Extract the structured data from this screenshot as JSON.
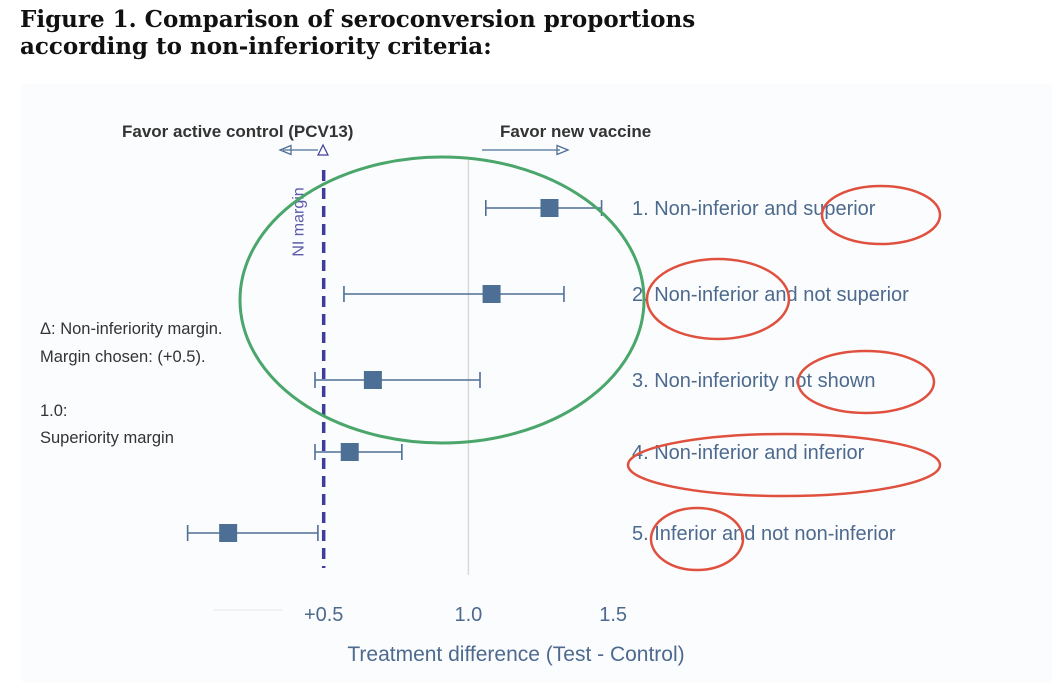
{
  "figure": {
    "title_line1": "Figure 1. Comparison of seroconversion proportions",
    "title_line2": "according to non-inferiority criteria:"
  },
  "chart_data": {
    "type": "forest",
    "xlabel": "Treatment difference (Test - Control)",
    "xlim": [
      -0.1,
      1.8
    ],
    "xticks": [
      0.5,
      1.0,
      1.5
    ],
    "xtick_labels": [
      "+0.5",
      "1.0",
      "1.5"
    ],
    "ni_margin": 0.5,
    "superiority_line": 1.0,
    "ni_margin_label": "NI margin",
    "favor_left": "Favor active control (PCV13)",
    "favor_right": "Favor new vaccine",
    "legend_lines": [
      "Δ: Non-inferiority margin.",
      "Margin chosen: (+0.5).",
      "1.0:",
      "Superiority margin"
    ],
    "rows": [
      {
        "label": "1. Non-inferior and superior",
        "estimate": 1.28,
        "lower": 1.06,
        "upper": 1.46
      },
      {
        "label": "2. Non-inferior and not superior",
        "estimate": 1.08,
        "lower": 0.57,
        "upper": 1.33
      },
      {
        "label": "3. Non-inferiority not shown",
        "estimate": 0.67,
        "lower": 0.47,
        "upper": 1.04
      },
      {
        "label": "4. Non-inferior and inferior",
        "estimate": 0.59,
        "lower": 0.47,
        "upper": 0.77
      },
      {
        "label": "5. Inferior and not non-inferior",
        "estimate": 0.17,
        "lower": 0.03,
        "upper": 0.48
      }
    ],
    "colors": {
      "marker": "#4e6f95",
      "ci_line": "#4e6f95",
      "ni_line": "#3e3d9c",
      "ref_line": "#d9d9d9",
      "text": "#4d6a8e",
      "dark_text": "#333333",
      "annotation_circle_green": "#4aa66b",
      "annotation_circle_red": "#e0503f"
    }
  }
}
